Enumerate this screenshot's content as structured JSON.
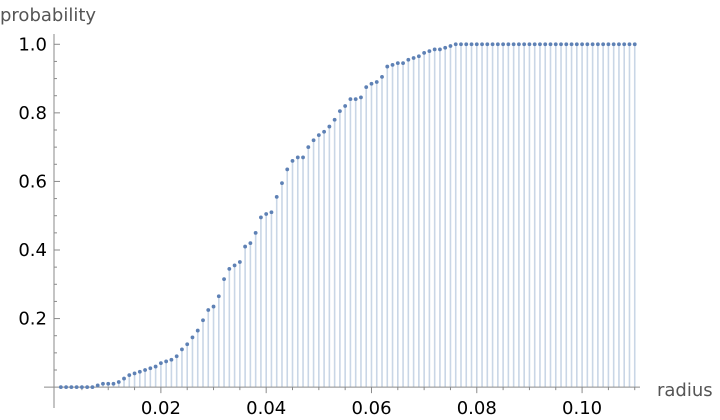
{
  "chart_data": {
    "type": "scatter",
    "style": "filled-stems-to-axis",
    "xlabel": "radius",
    "ylabel": "probability",
    "xlim": [
      -0.0003,
      0.111
    ],
    "ylim": [
      -0.02,
      1.03
    ],
    "x_ticks": [
      {
        "value": 0.02,
        "label": "0.02"
      },
      {
        "value": 0.04,
        "label": "0.04"
      },
      {
        "value": 0.06,
        "label": "0.06"
      },
      {
        "value": 0.08,
        "label": "0.08"
      },
      {
        "value": 0.1,
        "label": "0.10"
      }
    ],
    "y_ticks": [
      {
        "value": 0.2,
        "label": "0.2"
      },
      {
        "value": 0.4,
        "label": "0.4"
      },
      {
        "value": 0.6,
        "label": "0.6"
      },
      {
        "value": 0.8,
        "label": "0.8"
      },
      {
        "value": 1.0,
        "label": "1.0"
      }
    ],
    "grid": false,
    "colors": {
      "points": "#5e81b5",
      "stems": "#c9d6e6",
      "axes": "#8a8a8a"
    },
    "series": [
      {
        "x": [
          0.001,
          0.002,
          0.003,
          0.004,
          0.005,
          0.006,
          0.007,
          0.008,
          0.009,
          0.01,
          0.011,
          0.012,
          0.013,
          0.014,
          0.015,
          0.016,
          0.017,
          0.018,
          0.019,
          0.02,
          0.021,
          0.022,
          0.023,
          0.024,
          0.025,
          0.026,
          0.027,
          0.028,
          0.029,
          0.03,
          0.031,
          0.032,
          0.033,
          0.034,
          0.035,
          0.036,
          0.037,
          0.038,
          0.039,
          0.04,
          0.041,
          0.042,
          0.043,
          0.044,
          0.045,
          0.046,
          0.047,
          0.048,
          0.049,
          0.05,
          0.051,
          0.052,
          0.053,
          0.054,
          0.055,
          0.056,
          0.057,
          0.058,
          0.059,
          0.06,
          0.061,
          0.062,
          0.063,
          0.064,
          0.065,
          0.066,
          0.067,
          0.068,
          0.069,
          0.07,
          0.071,
          0.072,
          0.073,
          0.074,
          0.075,
          0.076,
          0.077,
          0.078,
          0.079,
          0.08,
          0.081,
          0.082,
          0.083,
          0.084,
          0.085,
          0.086,
          0.087,
          0.088,
          0.089,
          0.09,
          0.091,
          0.092,
          0.093,
          0.094,
          0.095,
          0.096,
          0.097,
          0.098,
          0.099,
          0.1,
          0.101,
          0.102,
          0.103,
          0.104,
          0.105,
          0.106,
          0.107,
          0.108,
          0.109,
          0.11
        ],
        "y": [
          0.0,
          0.0,
          0.0,
          0.0,
          0.0,
          0.0,
          0.0,
          0.005,
          0.01,
          0.01,
          0.01,
          0.015,
          0.025,
          0.035,
          0.04,
          0.045,
          0.05,
          0.055,
          0.06,
          0.07,
          0.075,
          0.08,
          0.09,
          0.11,
          0.125,
          0.145,
          0.165,
          0.195,
          0.225,
          0.235,
          0.265,
          0.315,
          0.345,
          0.355,
          0.365,
          0.41,
          0.42,
          0.45,
          0.495,
          0.505,
          0.51,
          0.555,
          0.595,
          0.635,
          0.66,
          0.67,
          0.67,
          0.7,
          0.72,
          0.735,
          0.745,
          0.76,
          0.78,
          0.805,
          0.82,
          0.84,
          0.84,
          0.845,
          0.875,
          0.885,
          0.89,
          0.905,
          0.935,
          0.94,
          0.945,
          0.945,
          0.955,
          0.96,
          0.965,
          0.975,
          0.98,
          0.985,
          0.985,
          0.99,
          0.995,
          1.0,
          1.0,
          1.0,
          1.0,
          1.0,
          1.0,
          1.0,
          1.0,
          1.0,
          1.0,
          1.0,
          1.0,
          1.0,
          1.0,
          1.0,
          1.0,
          1.0,
          1.0,
          1.0,
          1.0,
          1.0,
          1.0,
          1.0,
          1.0,
          1.0,
          1.0,
          1.0,
          1.0,
          1.0,
          1.0,
          1.0,
          1.0,
          1.0,
          1.0,
          1.0
        ]
      }
    ]
  }
}
